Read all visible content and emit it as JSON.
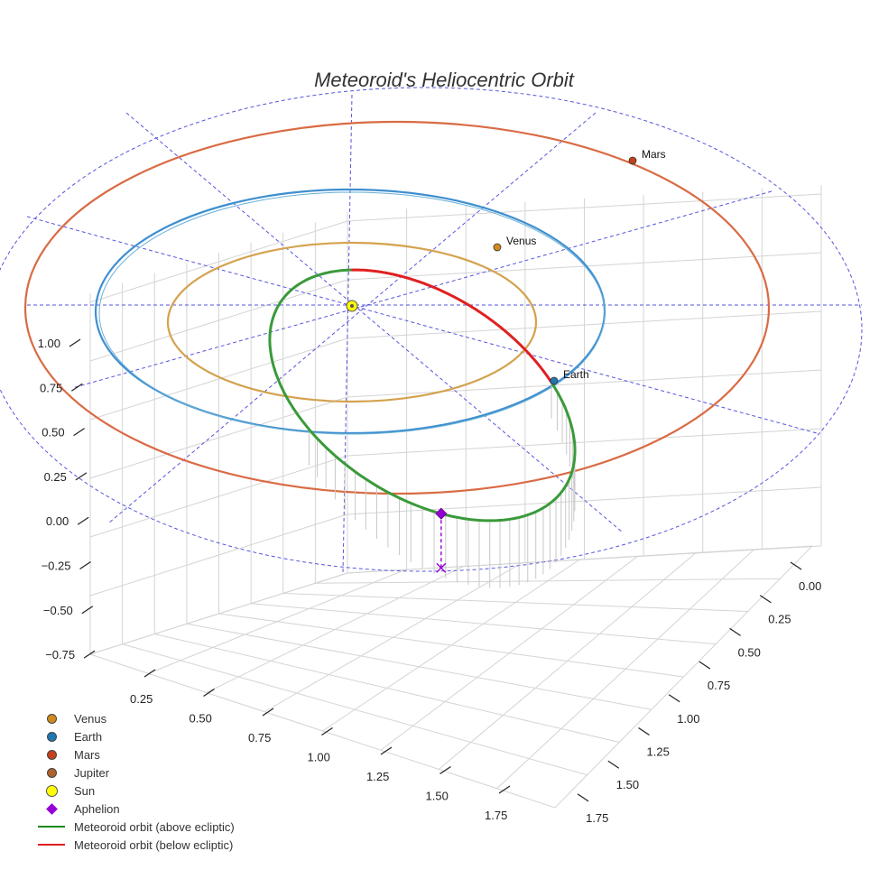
{
  "chart_data": {
    "type": "3d-orbit",
    "title": "Meteoroid's Heliocentric Orbit",
    "x_ticks": [
      "0.25",
      "0.50",
      "0.75",
      "1.00",
      "1.25",
      "1.50",
      "1.75"
    ],
    "y_ticks": [
      "0.00",
      "0.25",
      "0.50",
      "0.75",
      "1.00",
      "1.25",
      "1.50",
      "1.75"
    ],
    "z_ticks": [
      "1.00",
      "0.75",
      "0.50",
      "0.25",
      "0.00",
      "−0.25",
      "−0.50",
      "−0.75"
    ],
    "planets": [
      {
        "name": "Venus",
        "orbit_au": 0.72,
        "color": "#d08a1e",
        "orbit_color": "#d4a24e",
        "labeled": true
      },
      {
        "name": "Earth",
        "orbit_au": 1.0,
        "color": "#1f77b4",
        "orbit_color": "#3f8fcf",
        "labeled": true
      },
      {
        "name": "Mars",
        "orbit_au": 1.52,
        "color": "#c4421a",
        "orbit_color": "#d96b44",
        "labeled": true
      },
      {
        "name": "Jupiter",
        "orbit_au": 5.2,
        "color": "#b0602a",
        "labeled": false
      }
    ],
    "sun": {
      "name": "Sun",
      "color": "#ffff00"
    },
    "aphelion": {
      "name": "Aphelion",
      "color": "#9400d3"
    },
    "meteoroid": {
      "above_label": "Meteoroid orbit (above ecliptic)",
      "above_color": "#3a9a3a",
      "below_label": "Meteoroid orbit (below ecliptic)",
      "below_color": "#e02020"
    },
    "legend": [
      {
        "label": "Venus",
        "kind": "dot",
        "color": "#d08a1e"
      },
      {
        "label": "Earth",
        "kind": "dot",
        "color": "#1f77b4"
      },
      {
        "label": "Mars",
        "kind": "dot",
        "color": "#c4421a"
      },
      {
        "label": "Jupiter",
        "kind": "dot",
        "color": "#b0602a"
      },
      {
        "label": "Sun",
        "kind": "sun",
        "color": "#ffff00"
      },
      {
        "label": "Aphelion",
        "kind": "diamond",
        "color": "#9400d3"
      },
      {
        "label": "Meteoroid orbit (above ecliptic)",
        "kind": "line",
        "color": "#1a8a1a"
      },
      {
        "label": "Meteoroid orbit (below ecliptic)",
        "kind": "line",
        "color": "#e02020"
      }
    ]
  }
}
